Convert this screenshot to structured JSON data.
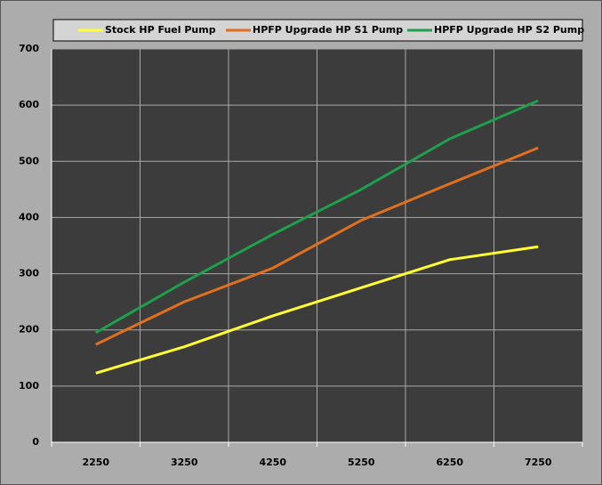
{
  "chart_data": {
    "type": "line",
    "categories": [
      "2250",
      "3250",
      "4250",
      "5250",
      "6250",
      "7250"
    ],
    "series": [
      {
        "name": "Stock HP Fuel Pump",
        "color": "#ffff33",
        "values": [
          123,
          170,
          225,
          275,
          325,
          348
        ]
      },
      {
        "name": "HPFP Upgrade HP S1 Pump",
        "color": "#e07020",
        "values": [
          174,
          250,
          310,
          395,
          460,
          524
        ]
      },
      {
        "name": "HPFP Upgrade HP S2 Pump",
        "color": "#1f9e4c",
        "values": [
          195,
          285,
          370,
          450,
          540,
          608
        ]
      }
    ],
    "ylim": [
      0,
      700
    ],
    "yticks": [
      0,
      100,
      200,
      300,
      400,
      500,
      600,
      700
    ],
    "grid": true,
    "legend": "top"
  }
}
